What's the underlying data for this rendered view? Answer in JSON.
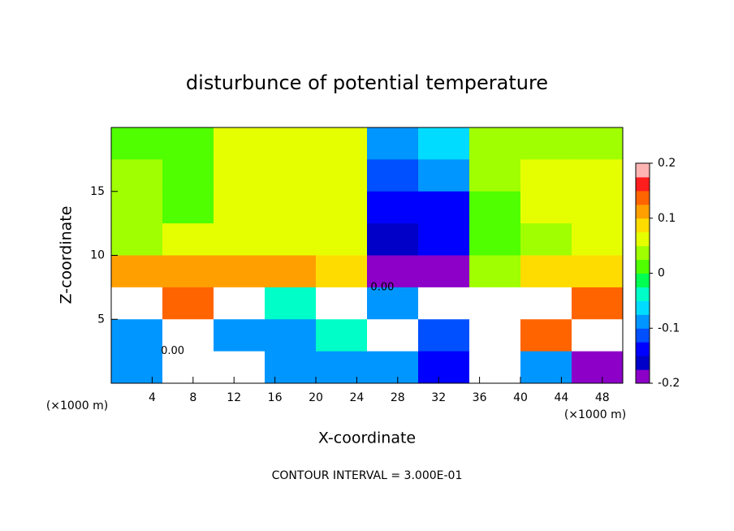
{
  "chart_data": {
    "type": "heatmap",
    "title": "disturbunce of potential temperature",
    "x_label": "X-coordinate",
    "y_label": "Z-coordinate",
    "x_unit": "(×1000 m)",
    "y_unit": "(×1000 m)",
    "footnote": "CONTOUR INTERVAL = 3.000E-01",
    "xlim": [
      0,
      50
    ],
    "ylim": [
      0,
      20
    ],
    "xticks": [
      4,
      8,
      12,
      16,
      20,
      24,
      28,
      32,
      36,
      40,
      44,
      48
    ],
    "yticks": [
      5,
      10,
      15
    ],
    "x": [
      2.5,
      7.5,
      12.5,
      17.5,
      22.5,
      27.5,
      32.5,
      37.5,
      42.5,
      47.5
    ],
    "y": [
      18.75,
      16.25,
      13.75,
      11.25,
      8.75,
      6.25,
      3.75,
      1.25
    ],
    "z": [
      [
        0.02,
        0.02,
        0.05,
        0.07,
        0.06,
        -0.08,
        -0.06,
        0.03,
        0.04,
        0.04
      ],
      [
        0.03,
        0,
        0.05,
        0.07,
        0.06,
        -0.12,
        -0.1,
        0.03,
        0.05,
        0.05
      ],
      [
        0.03,
        0.02,
        0.06,
        0.07,
        0.06,
        -0.15,
        -0.13,
        0.02,
        0.05,
        0.07
      ],
      [
        0.04,
        0.05,
        0.06,
        0.07,
        0.07,
        -0.16,
        -0.15,
        0.01,
        0.04,
        0.06
      ],
      [
        0.1,
        0.1,
        0.1,
        0.1,
        0.09,
        -0.19,
        -0.18,
        0.04,
        0.08,
        0.08
      ],
      [
        0.3,
        0.15,
        0.3,
        -0.05,
        0.3,
        -0.1,
        0.3,
        0.3,
        0.3,
        0.15
      ],
      [
        -0.1,
        0.3,
        -0.1,
        -0.1,
        -0.05,
        0.3,
        -0.12,
        0.3,
        0.15,
        0.3
      ],
      [
        -0.1,
        0.3,
        0.3,
        -0.08,
        -0.1,
        -0.1,
        -0.15,
        0.3,
        -0.1,
        -0.18
      ]
    ],
    "colorbar": {
      "lim": [
        -0.2,
        0.2
      ],
      "ticks": [
        0.2,
        0.1,
        0,
        -0.1,
        -0.2
      ],
      "colors": [
        "#8c00c8",
        "#0000c8",
        "#0000ff",
        "#0050ff",
        "#0096ff",
        "#00dcff",
        "#00ffc8",
        "#00ff50",
        "#50ff00",
        "#a0ff00",
        "#e6ff00",
        "#ffdc00",
        "#ffa000",
        "#ff6400",
        "#ff1e1e",
        "#ffb4b4"
      ],
      "out_of_range_color": "#ffffff"
    },
    "contour_labels": [
      {
        "text": "0.00",
        "x": 26.5,
        "z": 7.5
      },
      {
        "text": "0.00",
        "x": 6,
        "z": 2.5
      }
    ]
  }
}
